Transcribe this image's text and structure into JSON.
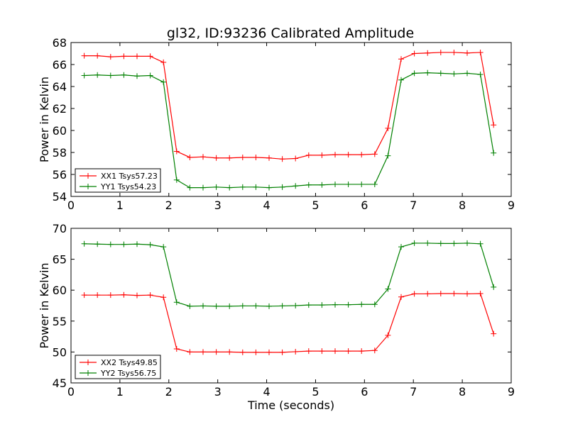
{
  "figure": {
    "title": "gl32, ID:93236 Calibrated Amplitude"
  },
  "colors": {
    "red": "#ff0000",
    "green": "#008000",
    "background": "#ffffff",
    "axis": "#000000"
  },
  "chart_data": [
    {
      "type": "line",
      "title": "gl32, ID:93236 Calibrated Amplitude",
      "xlabel": "",
      "ylabel": "Power in Kelvin",
      "xlim": [
        0,
        9
      ],
      "ylim": [
        54,
        68
      ],
      "xticks": [
        0,
        1,
        2,
        3,
        4,
        5,
        6,
        7,
        8,
        9
      ],
      "yticks": [
        54,
        56,
        58,
        60,
        62,
        64,
        66,
        68
      ],
      "grid": false,
      "legend_position": "bottom-left",
      "x": [
        0.27,
        0.54,
        0.81,
        1.08,
        1.35,
        1.62,
        1.89,
        2.16,
        2.43,
        2.7,
        2.97,
        3.24,
        3.51,
        3.78,
        4.05,
        4.32,
        4.59,
        4.86,
        5.13,
        5.4,
        5.67,
        5.94,
        6.21,
        6.48,
        6.75,
        7.02,
        7.29,
        7.56,
        7.83,
        8.1,
        8.37,
        8.64
      ],
      "series": [
        {
          "name": "XX1 Tsys57.23",
          "color": "#ff0000",
          "values": [
            66.8,
            66.8,
            66.7,
            66.75,
            66.75,
            66.75,
            66.2,
            58.1,
            57.55,
            57.6,
            57.5,
            57.5,
            57.55,
            57.55,
            57.5,
            57.4,
            57.45,
            57.75,
            57.75,
            57.8,
            57.8,
            57.8,
            57.85,
            60.2,
            66.5,
            67.0,
            67.05,
            67.1,
            67.1,
            67.05,
            67.1,
            60.5
          ]
        },
        {
          "name": "YY1 Tsys54.23",
          "color": "#008000",
          "values": [
            65.0,
            65.05,
            65.0,
            65.05,
            64.95,
            65.0,
            64.4,
            55.5,
            54.8,
            54.8,
            54.85,
            54.8,
            54.85,
            54.85,
            54.8,
            54.85,
            54.95,
            55.05,
            55.05,
            55.1,
            55.1,
            55.1,
            55.1,
            57.7,
            64.6,
            65.2,
            65.25,
            65.2,
            65.15,
            65.2,
            65.1,
            57.95
          ]
        }
      ]
    },
    {
      "type": "line",
      "title": "",
      "xlabel": "Time (seconds)",
      "ylabel": "Power in Kelvin",
      "xlim": [
        0,
        9
      ],
      "ylim": [
        45,
        70
      ],
      "xticks": [
        0,
        1,
        2,
        3,
        4,
        5,
        6,
        7,
        8,
        9
      ],
      "yticks": [
        45,
        50,
        55,
        60,
        65,
        70
      ],
      "grid": false,
      "legend_position": "bottom-left",
      "x": [
        0.27,
        0.54,
        0.81,
        1.08,
        1.35,
        1.62,
        1.89,
        2.16,
        2.43,
        2.7,
        2.97,
        3.24,
        3.51,
        3.78,
        4.05,
        4.32,
        4.59,
        4.86,
        5.13,
        5.4,
        5.67,
        5.94,
        6.21,
        6.48,
        6.75,
        7.02,
        7.29,
        7.56,
        7.83,
        8.1,
        8.37,
        8.64
      ],
      "series": [
        {
          "name": "XX2 Tsys49.85",
          "color": "#ff0000",
          "values": [
            59.2,
            59.2,
            59.2,
            59.25,
            59.15,
            59.2,
            58.85,
            50.5,
            50.0,
            50.0,
            50.0,
            50.0,
            49.95,
            49.95,
            49.95,
            49.95,
            50.05,
            50.15,
            50.15,
            50.15,
            50.15,
            50.15,
            50.25,
            52.7,
            58.9,
            59.4,
            59.4,
            59.45,
            59.45,
            59.4,
            59.45,
            52.95
          ]
        },
        {
          "name": "YY2 Tsys56.75",
          "color": "#008000",
          "values": [
            67.5,
            67.45,
            67.4,
            67.4,
            67.45,
            67.35,
            67.0,
            58.05,
            57.4,
            57.45,
            57.4,
            57.4,
            57.45,
            57.45,
            57.4,
            57.45,
            57.5,
            57.6,
            57.6,
            57.65,
            57.65,
            57.7,
            57.7,
            60.2,
            67.0,
            67.6,
            67.6,
            67.55,
            67.55,
            67.6,
            67.5,
            60.5
          ]
        }
      ]
    }
  ]
}
